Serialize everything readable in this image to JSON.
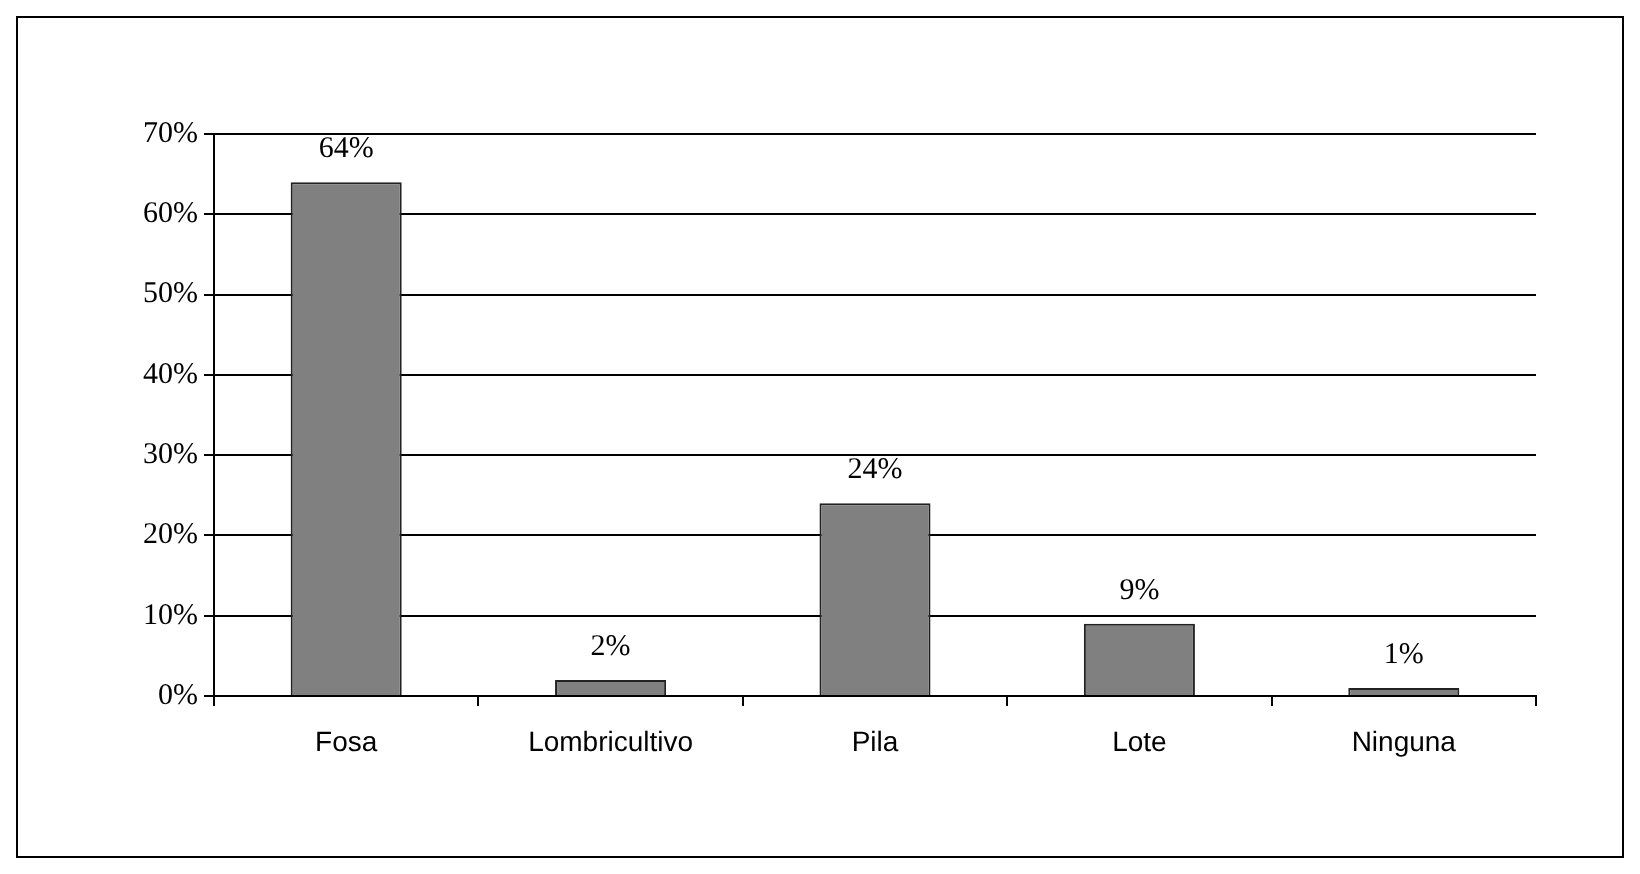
{
  "chart_data": {
    "type": "bar",
    "categories": [
      "Fosa",
      "Lombricultivo",
      "Pila",
      "Lote",
      "Ninguna"
    ],
    "values": [
      64,
      2,
      24,
      9,
      1
    ],
    "color": "#808080",
    "value_labels": [
      "64%",
      "2%",
      "24%",
      "9%",
      "1%"
    ],
    "ylim": [
      0,
      70
    ],
    "yticks": [
      {
        "value": 0,
        "label": "0%"
      },
      {
        "value": 10,
        "label": "10%"
      },
      {
        "value": 20,
        "label": "20%"
      },
      {
        "value": 30,
        "label": "30%"
      },
      {
        "value": 40,
        "label": "40%"
      },
      {
        "value": 50,
        "label": "50%"
      },
      {
        "value": 60,
        "label": "60%"
      },
      {
        "value": 70,
        "label": "70%"
      }
    ],
    "grid": "y",
    "legend": false
  }
}
